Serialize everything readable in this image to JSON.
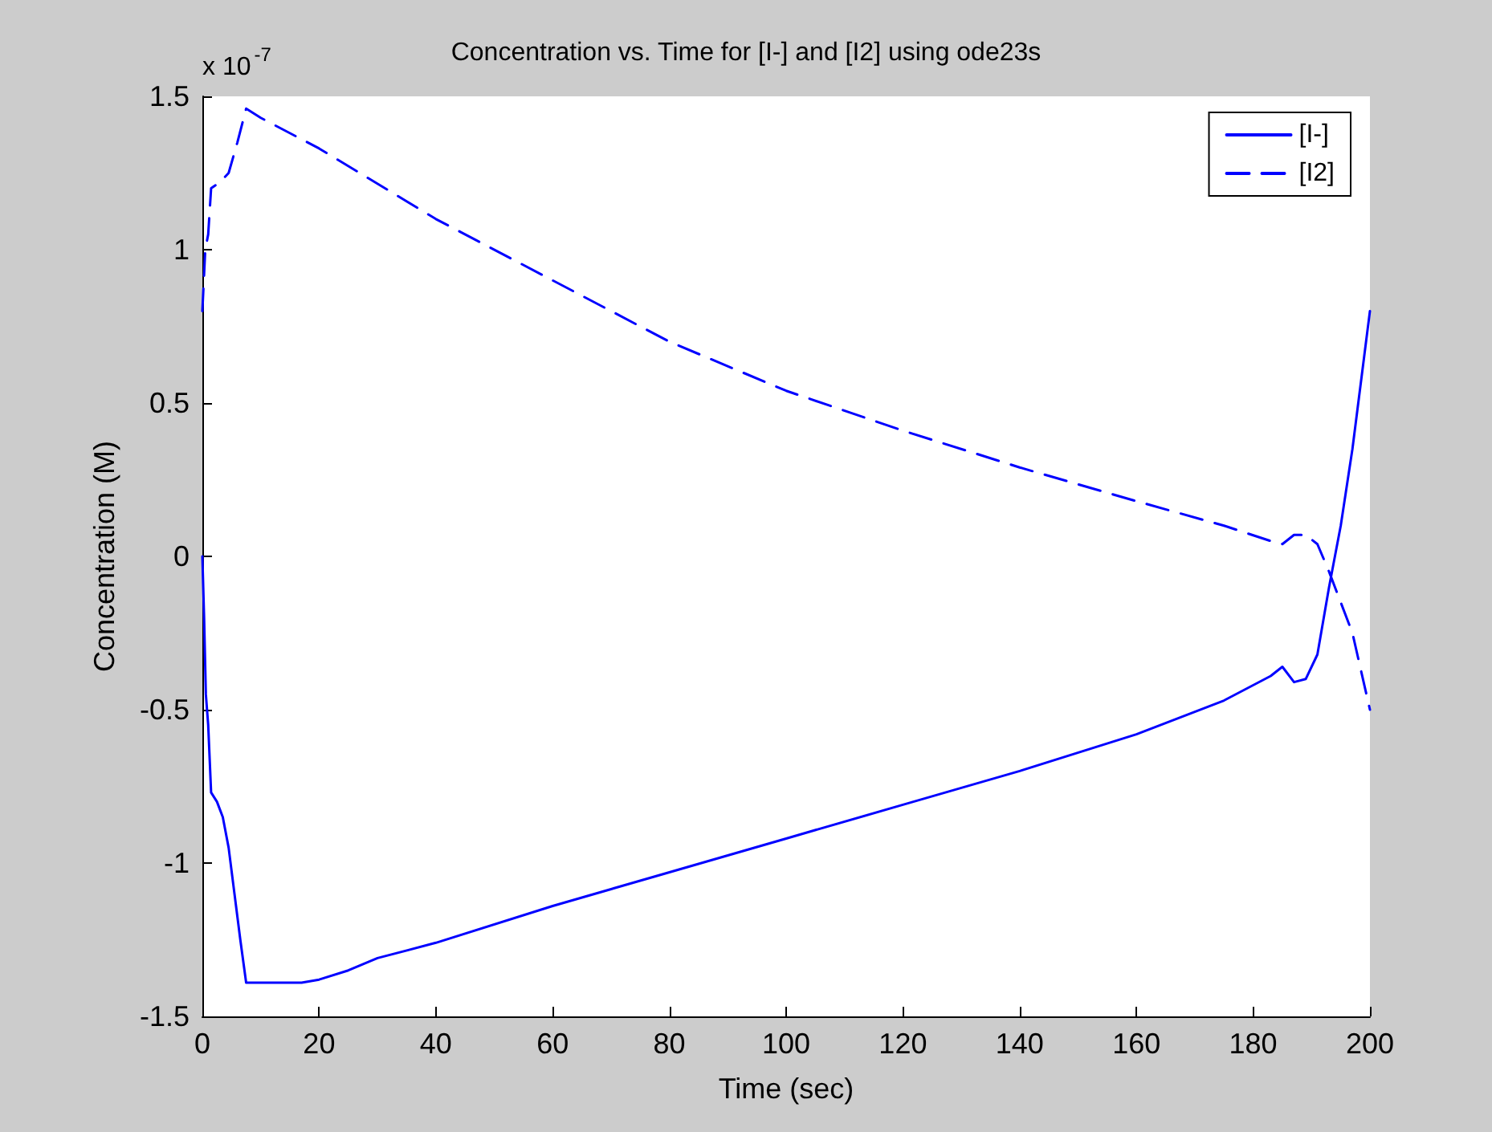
{
  "chart_data": {
    "type": "line",
    "title": "Concentration vs. Time for [I-] and [I2] using ode23s",
    "xlabel": "Time (sec)",
    "ylabel": "Concentration (M)",
    "annotations": [
      "x 10$^{-7}$"
    ],
    "xlim": [
      0,
      200
    ],
    "xticks": [
      0,
      20,
      40,
      60,
      80,
      100,
      120,
      140,
      160,
      180,
      200
    ],
    "ylim": [
      -1.5,
      1.5
    ],
    "yticks": [
      -1.5,
      -1,
      -0.5,
      0,
      0.5,
      1,
      1.5
    ],
    "grid": false,
    "legend": "top right",
    "marker": "none",
    "series": [
      {
        "name": "[I-]",
        "color": "#0000ff",
        "line_style": "solid",
        "x": [
          0,
          0.3,
          0.6,
          1,
          1.5,
          2.5,
          3.5,
          4.5,
          5.5,
          6.5,
          7.5,
          10,
          17,
          20,
          25,
          30,
          40,
          60,
          80,
          100,
          120,
          140,
          160,
          175,
          183,
          185,
          187,
          189,
          191,
          193,
          195,
          197,
          199,
          200
        ],
        "values": [
          0,
          -0.2,
          -0.45,
          -0.55,
          -0.77,
          -0.8,
          -0.85,
          -0.95,
          -1.1,
          -1.25,
          -1.39,
          -1.39,
          -1.39,
          -1.38,
          -1.35,
          -1.31,
          -1.26,
          -1.14,
          -1.03,
          -0.92,
          -0.81,
          -0.7,
          -0.58,
          -0.47,
          -0.39,
          -0.36,
          -0.41,
          -0.4,
          -0.32,
          -0.1,
          0.1,
          0.35,
          0.65,
          0.8
        ]
      },
      {
        "name": "[I2]",
        "color": "#0000ff",
        "line_style": "dashed",
        "x": [
          0,
          0.5,
          1,
          1.5,
          3,
          4.5,
          6,
          7.5,
          10,
          20,
          40,
          60,
          80,
          100,
          120,
          140,
          160,
          175,
          183,
          185,
          187,
          189,
          191,
          193,
          195,
          197,
          200
        ],
        "values": [
          0.8,
          1,
          1.05,
          1.2,
          1.22,
          1.25,
          1.35,
          1.46,
          1.43,
          1.33,
          1.1,
          0.9,
          0.7,
          0.54,
          0.41,
          0.29,
          0.18,
          0.1,
          0.05,
          0.04,
          0.07,
          0.07,
          0.04,
          -0.05,
          -0.15,
          -0.25,
          -0.5
        ]
      }
    ]
  }
}
